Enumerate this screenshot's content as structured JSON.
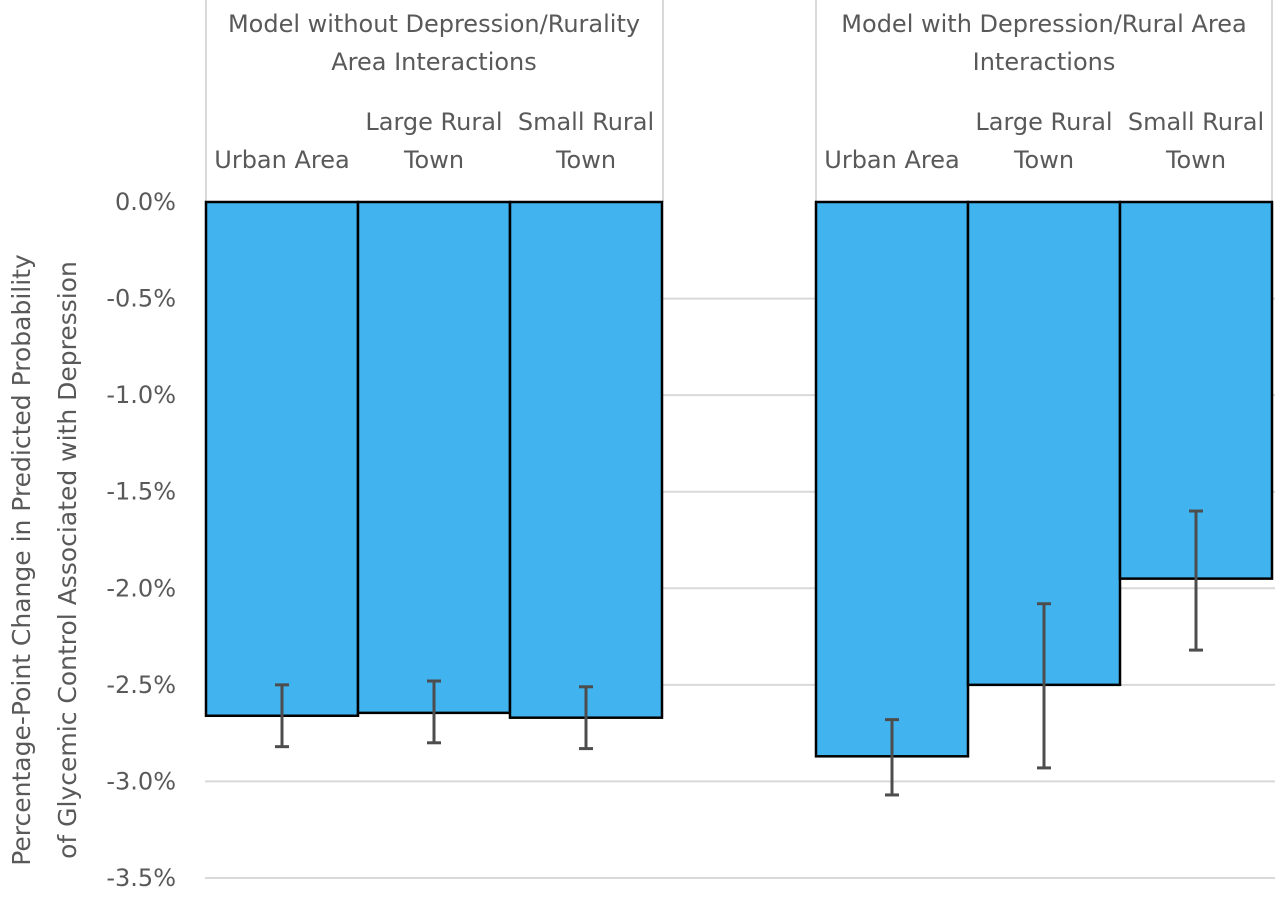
{
  "chart_data": {
    "type": "bar",
    "ylabel": [
      "Percentage-Point Change in Predicted Probability",
      "of Glycemic Control Associated with Depression"
    ],
    "ylim": [
      -3.5,
      0
    ],
    "yticks": [
      "0.0%",
      "-0.5%",
      "-1.0%",
      "-1.5%",
      "-2.0%",
      "-2.5%",
      "-3.0%",
      "-3.5%"
    ],
    "grid": true,
    "colors": {
      "bar": "#41b4f0",
      "bar_edge": "#000000",
      "error_bar": "#4d4d4d",
      "grid": "#d9d9d9",
      "text": "#595959"
    },
    "groups": [
      {
        "label": [
          "Model without Depression/Rurality",
          "Area Interactions"
        ],
        "categories": [
          {
            "label": [
              "Urban Area"
            ],
            "value": -2.66,
            "ci": [
              -2.82,
              -2.5
            ]
          },
          {
            "label": [
              "Large Rural",
              "Town"
            ],
            "value": -2.645,
            "ci": [
              -2.8,
              -2.48
            ]
          },
          {
            "label": [
              "Small Rural",
              "Town"
            ],
            "value": -2.67,
            "ci": [
              -2.83,
              -2.51
            ]
          }
        ]
      },
      {
        "label": [
          "Model with Depression/Rural Area",
          "Interactions"
        ],
        "categories": [
          {
            "label": [
              "Urban Area"
            ],
            "value": -2.87,
            "ci": [
              -3.07,
              -2.68
            ]
          },
          {
            "label": [
              "Large Rural",
              "Town"
            ],
            "value": -2.5,
            "ci": [
              -2.93,
              -2.08
            ]
          },
          {
            "label": [
              "Small Rural",
              "Town"
            ],
            "value": -1.95,
            "ci": [
              -2.32,
              -1.6
            ]
          }
        ]
      }
    ]
  }
}
